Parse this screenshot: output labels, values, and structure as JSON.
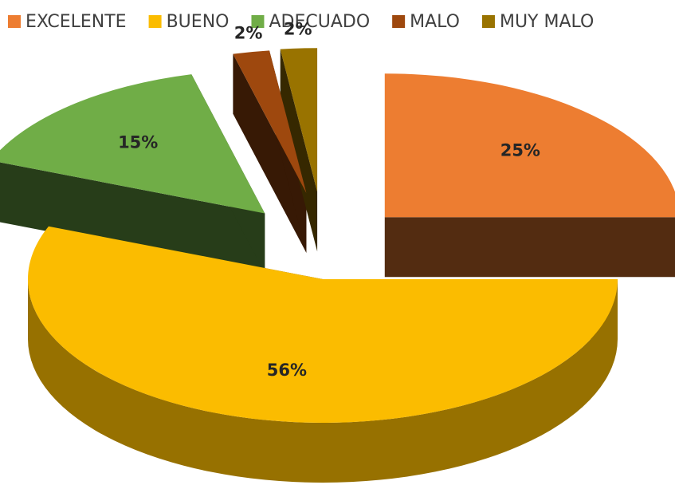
{
  "chart_data": {
    "type": "pie3d",
    "categories": [
      "EXCELENTE",
      "BUENO",
      "ADECUADO",
      "MALO",
      "MUY MALO"
    ],
    "values": [
      25,
      56,
      15,
      2,
      2
    ],
    "value_labels": [
      "25%",
      "56%",
      "15%",
      "2%",
      "2%"
    ],
    "colors": [
      "#ed7d31",
      "#fbbc00",
      "#70ad47",
      "#9e480e",
      "#997300"
    ],
    "legend": "top"
  }
}
